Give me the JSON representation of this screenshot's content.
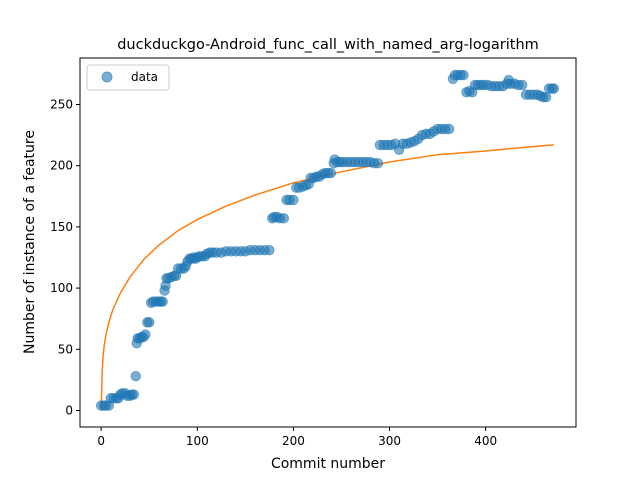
{
  "chart_data": {
    "type": "scatter",
    "title": "duckduckgo-Android_func_call_with_named_arg-logarithm",
    "xlabel": "Commit number",
    "ylabel": "Number of instance of a feature",
    "xlim": [
      -22,
      494
    ],
    "ylim": [
      -13.5,
      288
    ],
    "xticks": [
      0,
      100,
      200,
      300,
      400
    ],
    "yticks": [
      0,
      50,
      100,
      150,
      200,
      250
    ],
    "grid": false,
    "legend": {
      "position": "top-left",
      "entries": [
        "data"
      ]
    },
    "colors": {
      "data": "#1f77b4",
      "fit": "#ff7f0e"
    },
    "series": [
      {
        "name": "data",
        "kind": "scatter",
        "points": [
          [
            0,
            4
          ],
          [
            3,
            4
          ],
          [
            5,
            4
          ],
          [
            8,
            4
          ],
          [
            10,
            10
          ],
          [
            13,
            10
          ],
          [
            16,
            10
          ],
          [
            18,
            10
          ],
          [
            20,
            13
          ],
          [
            22,
            14
          ],
          [
            25,
            14
          ],
          [
            27,
            12
          ],
          [
            30,
            12
          ],
          [
            32,
            13
          ],
          [
            34,
            13
          ],
          [
            36,
            28
          ],
          [
            37,
            55
          ],
          [
            38,
            59
          ],
          [
            40,
            59
          ],
          [
            42,
            60
          ],
          [
            44,
            60
          ],
          [
            46,
            62
          ],
          [
            48,
            72
          ],
          [
            50,
            72
          ],
          [
            52,
            88
          ],
          [
            54,
            89
          ],
          [
            57,
            89
          ],
          [
            60,
            89
          ],
          [
            62,
            89
          ],
          [
            64,
            89
          ],
          [
            66,
            98
          ],
          [
            67,
            102
          ],
          [
            68,
            108
          ],
          [
            70,
            108
          ],
          [
            73,
            109
          ],
          [
            76,
            110
          ],
          [
            78,
            110
          ],
          [
            80,
            116
          ],
          [
            83,
            116
          ],
          [
            86,
            116
          ],
          [
            88,
            118
          ],
          [
            90,
            122
          ],
          [
            92,
            124
          ],
          [
            94,
            124
          ],
          [
            96,
            125
          ],
          [
            98,
            124
          ],
          [
            100,
            125
          ],
          [
            102,
            126
          ],
          [
            105,
            126
          ],
          [
            108,
            126
          ],
          [
            110,
            128
          ],
          [
            113,
            129
          ],
          [
            116,
            129
          ],
          [
            120,
            129
          ],
          [
            125,
            129
          ],
          [
            130,
            130
          ],
          [
            135,
            130
          ],
          [
            140,
            130
          ],
          [
            145,
            130
          ],
          [
            150,
            130
          ],
          [
            155,
            131
          ],
          [
            160,
            131
          ],
          [
            165,
            131
          ],
          [
            170,
            131
          ],
          [
            175,
            131
          ],
          [
            178,
            157
          ],
          [
            180,
            158
          ],
          [
            183,
            158
          ],
          [
            186,
            157
          ],
          [
            190,
            157
          ],
          [
            193,
            172
          ],
          [
            196,
            172
          ],
          [
            200,
            172
          ],
          [
            203,
            182
          ],
          [
            206,
            182
          ],
          [
            210,
            183
          ],
          [
            213,
            184
          ],
          [
            216,
            185
          ],
          [
            218,
            190
          ],
          [
            221,
            190
          ],
          [
            224,
            191
          ],
          [
            227,
            191
          ],
          [
            230,
            193
          ],
          [
            233,
            194
          ],
          [
            236,
            194
          ],
          [
            239,
            194
          ],
          [
            242,
            202
          ],
          [
            243,
            205
          ],
          [
            246,
            203
          ],
          [
            249,
            203
          ],
          [
            252,
            203
          ],
          [
            256,
            203
          ],
          [
            260,
            203
          ],
          [
            264,
            203
          ],
          [
            268,
            203
          ],
          [
            272,
            203
          ],
          [
            276,
            203
          ],
          [
            280,
            203
          ],
          [
            284,
            202
          ],
          [
            288,
            202
          ],
          [
            290,
            217
          ],
          [
            294,
            217
          ],
          [
            298,
            217
          ],
          [
            302,
            217
          ],
          [
            306,
            218
          ],
          [
            310,
            213
          ],
          [
            314,
            218
          ],
          [
            318,
            218
          ],
          [
            322,
            219
          ],
          [
            326,
            220
          ],
          [
            330,
            222
          ],
          [
            334,
            225
          ],
          [
            338,
            226
          ],
          [
            342,
            226
          ],
          [
            346,
            228
          ],
          [
            350,
            230
          ],
          [
            354,
            230
          ],
          [
            358,
            230
          ],
          [
            362,
            230
          ],
          [
            366,
            271
          ],
          [
            368,
            274
          ],
          [
            371,
            274
          ],
          [
            374,
            274
          ],
          [
            377,
            274
          ],
          [
            380,
            260
          ],
          [
            383,
            261
          ],
          [
            386,
            260
          ],
          [
            389,
            266
          ],
          [
            392,
            266
          ],
          [
            395,
            266
          ],
          [
            398,
            266
          ],
          [
            402,
            266
          ],
          [
            406,
            265
          ],
          [
            410,
            265
          ],
          [
            414,
            265
          ],
          [
            418,
            265
          ],
          [
            422,
            267
          ],
          [
            424,
            270
          ],
          [
            426,
            267
          ],
          [
            430,
            267
          ],
          [
            434,
            266
          ],
          [
            438,
            266
          ],
          [
            442,
            258
          ],
          [
            446,
            258
          ],
          [
            450,
            258
          ],
          [
            454,
            258
          ],
          [
            457,
            257
          ],
          [
            460,
            256
          ],
          [
            463,
            256
          ],
          [
            466,
            263
          ],
          [
            469,
            263
          ],
          [
            471,
            263
          ]
        ]
      },
      {
        "name": "",
        "kind": "line",
        "points": [
          [
            0,
            0
          ],
          [
            1,
            31
          ],
          [
            2,
            44
          ],
          [
            3,
            52
          ],
          [
            5,
            62
          ],
          [
            8,
            72
          ],
          [
            12,
            82
          ],
          [
            20,
            96
          ],
          [
            30,
            109
          ],
          [
            45,
            124
          ],
          [
            60,
            135
          ],
          [
            80,
            147
          ],
          [
            100,
            156
          ],
          [
            130,
            167
          ],
          [
            160,
            176
          ],
          [
            200,
            186
          ],
          [
            250,
            195
          ],
          [
            300,
            203
          ],
          [
            350,
            209
          ],
          [
            400,
            212
          ],
          [
            440,
            215
          ],
          [
            471,
            217
          ]
        ]
      }
    ]
  }
}
